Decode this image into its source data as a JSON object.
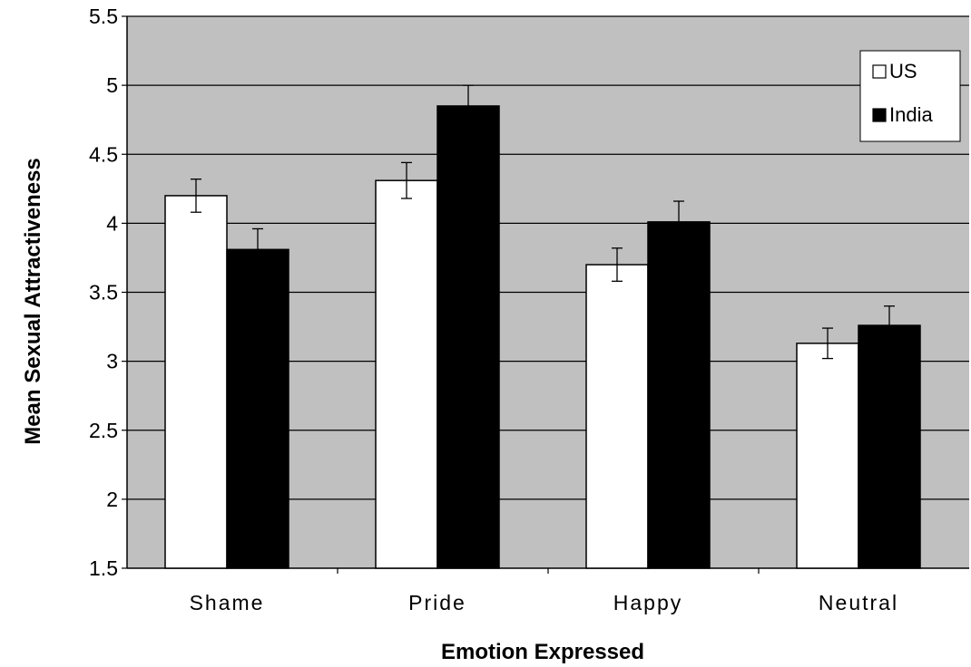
{
  "chart_data": {
    "type": "bar",
    "title": "",
    "xlabel": "Emotion  Expressed",
    "ylabel": "Mean Sexual Attractiveness",
    "categories": [
      "Shame",
      "Pride",
      "Happy",
      "Neutral"
    ],
    "series": [
      {
        "name": "US",
        "values": [
          4.2,
          4.31,
          3.7,
          3.13
        ],
        "errors": [
          0.12,
          0.13,
          0.12,
          0.11
        ],
        "color": "#ffffff"
      },
      {
        "name": "India",
        "values": [
          3.81,
          4.85,
          4.01,
          3.26
        ],
        "errors": [
          0.15,
          0.15,
          0.15,
          0.14
        ],
        "color": "#000000"
      }
    ],
    "ylim": [
      1.5,
      5.5
    ],
    "yticks": [
      "1.5",
      "2",
      "2.5",
      "3",
      "3.5",
      "4",
      "4.5",
      "5",
      "5.5"
    ],
    "grid": true,
    "legend_position": "top-right",
    "plot_background": "#c0c0c0"
  }
}
